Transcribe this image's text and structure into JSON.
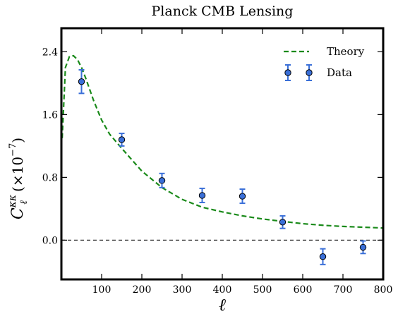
{
  "chart_data": {
    "type": "scatter",
    "title": "Planck CMB Lensing",
    "xlabel": "ℓ",
    "ylabel_main": "C",
    "ylabel_sub": "ℓ",
    "ylabel_sup": "κκ",
    "ylabel_scale": "(×10",
    "ylabel_exp": "−7",
    "ylabel_close": ")",
    "xlim": [
      0,
      800
    ],
    "ylim": [
      -0.5,
      2.7
    ],
    "xticks": [
      100,
      200,
      300,
      400,
      500,
      600,
      700,
      800
    ],
    "yticks": [
      0.0,
      0.8,
      1.6,
      2.4
    ],
    "xtick_labels": [
      "100",
      "200",
      "300",
      "400",
      "500",
      "600",
      "700",
      "800"
    ],
    "ytick_labels": [
      "0.0",
      "0.8",
      "1.6",
      "2.4"
    ],
    "legend": {
      "placement": "top-right",
      "theory_label": "Theory",
      "data_label": "Data"
    },
    "series": [
      {
        "name": "Theory",
        "kind": "line",
        "style": "dashed",
        "color": "#1a8a1a",
        "x": [
          2,
          10,
          20,
          30,
          40,
          50,
          60,
          80,
          100,
          120,
          150,
          200,
          250,
          300,
          350,
          400,
          450,
          500,
          550,
          600,
          650,
          700,
          750,
          800
        ],
        "y": [
          1.3,
          2.2,
          2.34,
          2.35,
          2.3,
          2.2,
          2.07,
          1.78,
          1.53,
          1.35,
          1.17,
          0.88,
          0.67,
          0.52,
          0.42,
          0.36,
          0.31,
          0.27,
          0.24,
          0.21,
          0.19,
          0.175,
          0.165,
          0.155
        ]
      },
      {
        "name": "Data",
        "kind": "errorbar",
        "color": "#3a6fd8",
        "x": [
          50,
          150,
          250,
          350,
          450,
          550,
          650,
          750
        ],
        "y": [
          2.02,
          1.28,
          0.76,
          0.57,
          0.56,
          0.23,
          -0.21,
          -0.09
        ],
        "yerr": [
          0.15,
          0.08,
          0.09,
          0.09,
          0.09,
          0.08,
          0.1,
          0.08
        ]
      }
    ],
    "reference_line": {
      "y": 0.0,
      "style": "dashed",
      "color": "#333333"
    }
  }
}
